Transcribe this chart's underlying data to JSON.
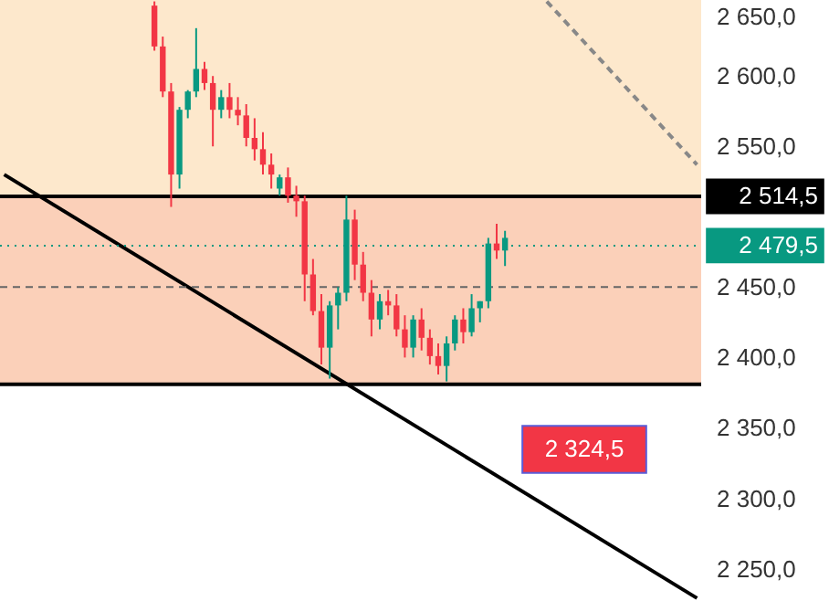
{
  "chart_data": {
    "type": "candlestick",
    "categories": [
      null,
      null,
      null,
      null,
      null,
      null,
      null,
      null,
      null,
      null,
      null,
      null,
      null,
      null,
      null,
      null,
      null,
      null,
      null,
      null,
      null,
      null,
      null,
      null,
      null,
      null,
      null,
      null,
      null,
      null,
      null,
      null,
      null,
      null,
      null,
      null,
      null,
      null,
      null,
      null,
      null,
      null,
      null,
      null,
      null,
      null,
      null,
      null,
      null,
      null,
      null,
      null,
      null,
      null,
      null,
      null,
      null,
      null,
      null,
      null,
      null,
      null,
      null,
      null,
      null,
      null,
      null,
      null,
      null,
      null,
      null,
      null,
      null,
      null,
      null,
      null,
      null,
      null,
      null,
      null,
      null,
      null,
      null,
      null
    ],
    "ohlc": [
      null,
      null,
      null,
      null,
      null,
      null,
      null,
      null,
      null,
      null,
      null,
      null,
      null,
      null,
      null,
      null,
      null,
      null,
      [
        2650,
        2653,
        2618,
        2621
      ],
      [
        2621,
        2628,
        2585,
        2589
      ],
      [
        2589,
        2595,
        2507,
        2530
      ],
      [
        2530,
        2578,
        2520,
        2576
      ],
      [
        2576,
        2590,
        2570,
        2589
      ],
      [
        2589,
        2634,
        2585,
        2605
      ],
      [
        2605,
        2610,
        2590,
        2595
      ],
      [
        2595,
        2600,
        2550,
        2576
      ],
      [
        2576,
        2590,
        2570,
        2585
      ],
      [
        2585,
        2595,
        2570,
        2576
      ],
      [
        2576,
        2585,
        2565,
        2572
      ],
      [
        2572,
        2580,
        2550,
        2556
      ],
      [
        2556,
        2570,
        2540,
        2548
      ],
      [
        2548,
        2560,
        2530,
        2537
      ],
      [
        2537,
        2545,
        2520,
        2530
      ],
      [
        2520,
        2530,
        2515,
        2528
      ],
      [
        2528,
        2535,
        2510,
        2515
      ],
      [
        2515,
        2522,
        2500,
        2511
      ],
      [
        2511,
        2515,
        2440,
        2459
      ],
      [
        2459,
        2470,
        2430,
        2433
      ],
      [
        2433,
        2445,
        2395,
        2407
      ],
      [
        2407,
        2440,
        2385,
        2437
      ],
      [
        2437,
        2450,
        2420,
        2446
      ],
      [
        2446,
        2515,
        2440,
        2498
      ],
      [
        2498,
        2505,
        2455,
        2466
      ],
      [
        2466,
        2475,
        2440,
        2446
      ],
      [
        2446,
        2455,
        2415,
        2427
      ],
      [
        2427,
        2445,
        2420,
        2440
      ],
      [
        2440,
        2448,
        2430,
        2437
      ],
      [
        2437,
        2445,
        2415,
        2420
      ],
      [
        2420,
        2430,
        2400,
        2407
      ],
      [
        2407,
        2430,
        2400,
        2427
      ],
      [
        2427,
        2435,
        2405,
        2414
      ],
      [
        2414,
        2420,
        2395,
        2401
      ],
      [
        2401,
        2410,
        2388,
        2394
      ],
      [
        2394,
        2415,
        2383,
        2410
      ],
      [
        2410,
        2430,
        2405,
        2427
      ],
      [
        2427,
        2435,
        2410,
        2418
      ],
      [
        2418,
        2445,
        2415,
        2435
      ],
      [
        2435,
        2440,
        2425,
        2440
      ],
      [
        2440,
        2485,
        2435,
        2481
      ],
      [
        2481,
        2495,
        2470,
        2476
      ],
      [
        2476,
        2490,
        2465,
        2485
      ],
      null,
      null,
      null,
      null,
      null,
      null,
      null,
      null,
      null,
      null,
      null,
      null,
      null,
      null,
      null,
      null,
      null,
      null,
      null,
      null,
      null,
      null,
      null
    ],
    "colors": [
      null,
      null,
      null,
      null,
      null,
      null,
      null,
      null,
      null,
      null,
      null,
      null,
      null,
      null,
      null,
      null,
      null,
      null,
      "#f23645",
      "#f23645",
      "#f23645",
      "#089981",
      "#089981",
      "#089981",
      "#f23645",
      "#f23645",
      "#089981",
      "#f23645",
      "#f23645",
      "#f23645",
      "#f23645",
      "#f23645",
      "#f23645",
      "#089981",
      "#f23645",
      "#f23645",
      "#f23645",
      "#f23645",
      "#f23645",
      "#089981",
      "#089981",
      "#089981",
      "#f23645",
      "#f23645",
      "#f23645",
      "#089981",
      "#f23645",
      "#f23645",
      "#f23645",
      "#089981",
      "#f23645",
      "#f23645",
      "#f23645",
      "#089981",
      "#089981",
      "#f23645",
      "#089981",
      "#089981",
      "#089981",
      "#f23645",
      "#089981",
      null,
      null,
      null,
      null,
      null,
      null,
      null,
      null,
      null,
      null,
      null,
      null,
      null,
      null,
      null,
      null,
      null,
      null,
      null,
      null,
      null,
      null,
      null
    ],
    "series": [
      {
        "type": "line",
        "color": "#000000",
        "line_style": "solid",
        "values": [
          2530,
          null,
          null,
          null,
          null,
          null,
          null,
          null,
          null,
          null,
          null,
          null,
          null,
          null,
          null,
          null,
          null,
          null,
          null,
          null,
          null,
          null,
          null,
          null,
          null,
          null,
          null,
          null,
          null,
          null,
          null,
          null,
          null,
          null,
          null,
          null,
          null,
          null,
          null,
          null,
          null,
          null,
          null,
          null,
          null,
          null,
          null,
          null,
          null,
          null,
          null,
          null,
          null,
          null,
          null,
          null,
          null,
          null,
          null,
          null,
          null,
          null,
          null,
          null,
          null,
          null,
          null,
          null,
          null,
          null,
          null,
          null,
          null,
          null,
          null,
          null,
          null,
          null,
          null,
          null,
          null,
          null,
          null,
          2229
        ]
      },
      {
        "type": "line",
        "color": "#888888",
        "line_style": "dashed",
        "values": [
          null,
          null,
          null,
          null,
          null,
          null,
          null,
          null,
          null,
          null,
          null,
          null,
          null,
          null,
          null,
          null,
          null,
          null,
          null,
          null,
          null,
          null,
          null,
          null,
          null,
          null,
          null,
          null,
          null,
          null,
          null,
          null,
          null,
          null,
          null,
          null,
          null,
          null,
          null,
          null,
          null,
          null,
          null,
          null,
          null,
          null,
          null,
          null,
          null,
          null,
          null,
          null,
          null,
          null,
          null,
          null,
          null,
          null,
          null,
          null,
          null,
          null,
          null,
          null,
          null,
          2653,
          null,
          null,
          null,
          null,
          null,
          null,
          null,
          null,
          null,
          null,
          null,
          null,
          null,
          null,
          null,
          null,
          null,
          2537
        ]
      }
    ],
    "ylim": [
      2227,
      2654
    ],
    "yticks": [
      {
        "value": 2250,
        "label": "2 250,0"
      },
      {
        "value": 2300,
        "label": "2 300,0"
      },
      {
        "value": 2350,
        "label": "2 350,0"
      },
      {
        "value": 2400,
        "label": "2 400,0"
      },
      {
        "value": 2450,
        "label": "2 450,0"
      },
      {
        "value": 2550,
        "label": "2 550,0"
      },
      {
        "value": 2600,
        "label": "2 600,0"
      },
      {
        "value": 2650,
        "label": "2 650,0"
      }
    ],
    "bands": [
      {
        "axis": "y",
        "from": 2381,
        "to": 2514.5,
        "color": "#fbd0b9"
      },
      {
        "axis": "y",
        "from": 2514.5,
        "to": 2654,
        "color": "#fde8cc"
      }
    ],
    "ref_lines": [
      {
        "axis": "y",
        "value": 2514.5,
        "label": "2 514,5",
        "color": "#000000",
        "line_style": "solid"
      },
      {
        "axis": "y",
        "value": 2479.5,
        "label": "2 479,5",
        "color": "#089981",
        "line_style": "dotted"
      },
      {
        "axis": "y",
        "value": 2450,
        "color": "#666666",
        "line_style": "dashed"
      },
      {
        "axis": "y",
        "value": 2381,
        "color": "#000000",
        "line_style": "solid"
      }
    ],
    "annotations": [
      "2 324,5"
    ],
    "tick_labels": "y"
  }
}
